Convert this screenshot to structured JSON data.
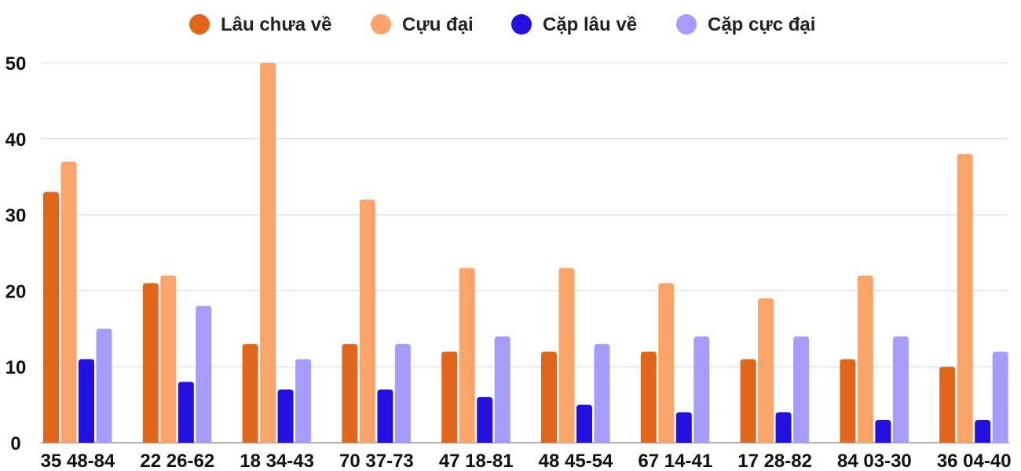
{
  "chart_data": {
    "type": "bar",
    "title": "",
    "xlabel": "",
    "ylabel": "",
    "ylim": [
      0,
      50
    ],
    "yticks": [
      0,
      10,
      20,
      30,
      40,
      50
    ],
    "grid": true,
    "legend_position": "top-center",
    "categories": [
      "35 48-84",
      "22 26-62",
      "18 34-43",
      "70 37-73",
      "47 18-81",
      "48 45-54",
      "67 14-41",
      "17 28-82",
      "84 03-30",
      "36 04-40"
    ],
    "series": [
      {
        "name": "Lâu chưa về",
        "color": "#E0661B",
        "values": [
          33,
          21,
          13,
          13,
          12,
          12,
          12,
          11,
          11,
          10
        ]
      },
      {
        "name": "Cựu đại",
        "color": "#FBA46A",
        "values": [
          37,
          22,
          50,
          32,
          23,
          23,
          21,
          19,
          22,
          38
        ]
      },
      {
        "name": "Cặp lâu về",
        "color": "#2410E0",
        "values": [
          11,
          8,
          7,
          7,
          6,
          5,
          4,
          4,
          3,
          3
        ]
      },
      {
        "name": "Cặp cực đại",
        "color": "#A59CFC",
        "values": [
          15,
          18,
          11,
          13,
          14,
          13,
          14,
          14,
          14,
          12
        ]
      }
    ]
  }
}
